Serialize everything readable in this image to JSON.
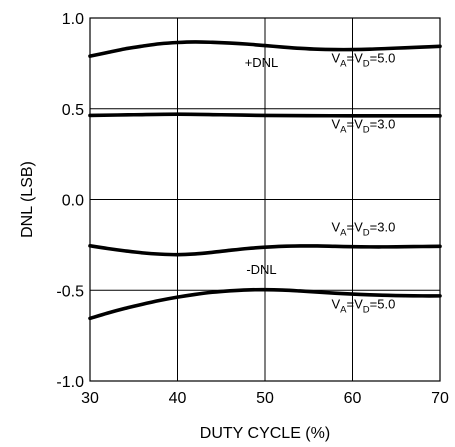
{
  "chart_data": {
    "type": "line",
    "title": "",
    "xlabel": "DUTY CYCLE (%)",
    "ylabel": "DNL (LSB)",
    "xlim": [
      30,
      70
    ],
    "ylim": [
      -1.0,
      1.0
    ],
    "xticks": [
      30,
      40,
      50,
      60,
      70
    ],
    "xtick_labels": [
      "30",
      "40",
      "50",
      "60",
      "70"
    ],
    "yticks": [
      1.0,
      0.5,
      0.0,
      -0.5,
      -1.0
    ],
    "ytick_labels": [
      "1.0",
      "0.5",
      "0.0",
      "-0.5",
      "-1.0"
    ],
    "grid": true,
    "colors": {
      "line": "#000000",
      "grid": "#000000",
      "background": "#ffffff"
    },
    "series": [
      {
        "x": [
          30,
          32,
          34,
          36,
          38,
          40,
          42,
          44,
          46,
          48,
          50,
          52,
          54,
          56,
          58,
          60,
          62,
          64,
          66,
          68,
          70
        ],
        "y": [
          0.79,
          0.81,
          0.83,
          0.845,
          0.858,
          0.865,
          0.868,
          0.866,
          0.862,
          0.856,
          0.848,
          0.84,
          0.833,
          0.828,
          0.826,
          0.826,
          0.828,
          0.832,
          0.836,
          0.84,
          0.844
        ]
      },
      {
        "x": [
          30,
          35,
          40,
          45,
          50,
          55,
          60,
          65,
          70
        ],
        "y": [
          0.463,
          0.467,
          0.47,
          0.467,
          0.463,
          0.462,
          0.461,
          0.461,
          0.461
        ]
      },
      {
        "x": [
          30,
          32,
          34,
          36,
          38,
          40,
          42,
          44,
          46,
          48,
          50,
          52,
          54,
          56,
          58,
          60,
          62,
          64,
          66,
          68,
          70
        ],
        "y": [
          -0.255,
          -0.27,
          -0.283,
          -0.294,
          -0.301,
          -0.304,
          -0.3,
          -0.291,
          -0.28,
          -0.27,
          -0.263,
          -0.258,
          -0.256,
          -0.256,
          -0.258,
          -0.26,
          -0.261,
          -0.261,
          -0.26,
          -0.259,
          -0.258
        ]
      },
      {
        "x": [
          30,
          32,
          34,
          36,
          38,
          40,
          42,
          44,
          46,
          48,
          50,
          52,
          54,
          56,
          58,
          60,
          62,
          64,
          66,
          68,
          70
        ],
        "y": [
          -0.655,
          -0.626,
          -0.6,
          -0.577,
          -0.556,
          -0.538,
          -0.523,
          -0.511,
          -0.503,
          -0.498,
          -0.497,
          -0.499,
          -0.504,
          -0.51,
          -0.516,
          -0.521,
          -0.525,
          -0.528,
          -0.53,
          -0.531,
          -0.531
        ]
      }
    ],
    "annotations": [
      {
        "id": "pos-dnl",
        "text": "+DNL",
        "x": 49.6,
        "y": 0.73
      },
      {
        "id": "neg-dnl",
        "text": "-DNL",
        "x": 49.6,
        "y": -0.41
      },
      {
        "id": "va5-top",
        "x": 57.6,
        "y": 0.755,
        "parts": [
          "V",
          "A",
          "=V",
          "D",
          "=5.0"
        ]
      },
      {
        "id": "va3-top",
        "x": 57.6,
        "y": 0.39,
        "parts": [
          "V",
          "A",
          "=V",
          "D",
          "=3.0"
        ]
      },
      {
        "id": "va3-bot",
        "x": 57.6,
        "y": -0.175,
        "parts": [
          "V",
          "A",
          "=V",
          "D",
          "=3.0"
        ]
      },
      {
        "id": "va5-bot",
        "x": 57.6,
        "y": -0.6,
        "parts": [
          "V",
          "A",
          "=V",
          "D",
          "=5.0"
        ]
      }
    ]
  }
}
